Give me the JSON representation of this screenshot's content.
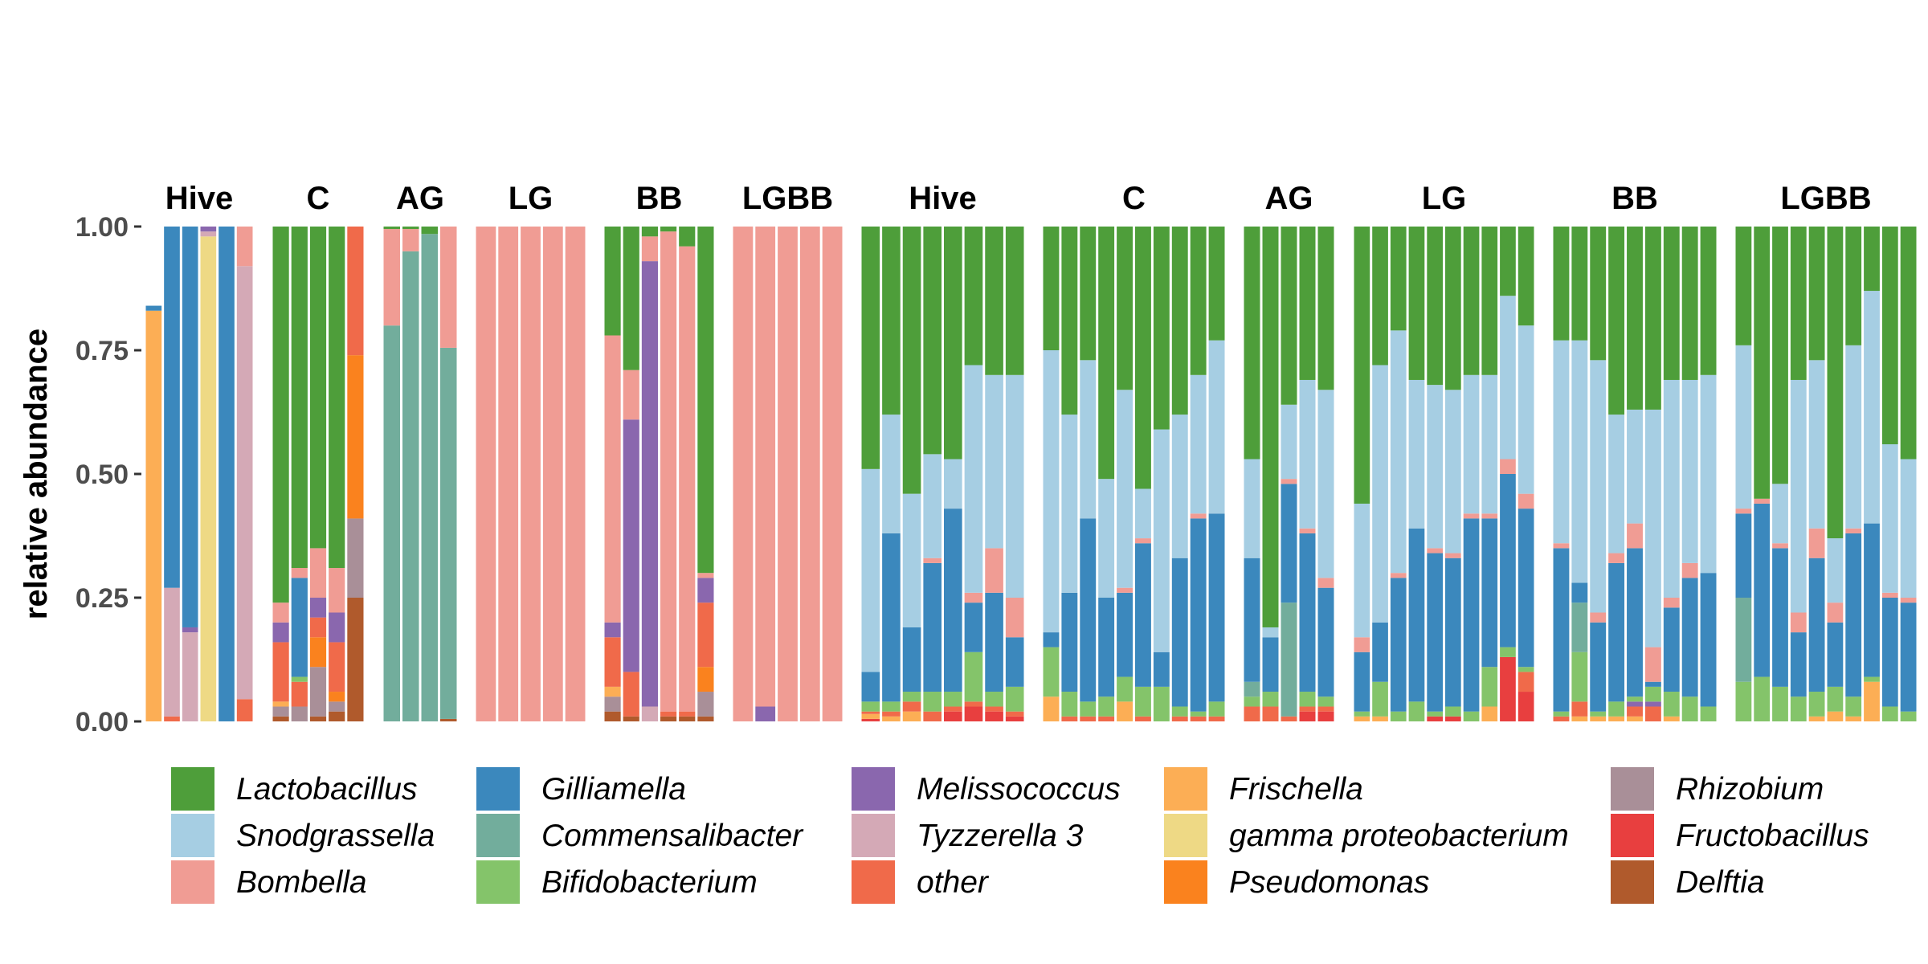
{
  "chart_data": {
    "type": "bar",
    "stacked": true,
    "ylabel": "relative abundance",
    "ylim": [
      0,
      1
    ],
    "yticks": [
      "0.00",
      "0.25",
      "0.50",
      "0.75",
      "1.00"
    ],
    "grid": false,
    "legend_position": "bottom",
    "taxa": [
      {
        "name": "Lactobacillus",
        "color": "#4e9e3a"
      },
      {
        "name": "Snodgrassella",
        "color": "#a6cee3"
      },
      {
        "name": "Bombella",
        "color": "#f09c94"
      },
      {
        "name": "Gilliamella",
        "color": "#3b88bd"
      },
      {
        "name": "Commensalibacter",
        "color": "#72ad9c"
      },
      {
        "name": "Bifidobacterium",
        "color": "#84c46a"
      },
      {
        "name": "Melissococcus",
        "color": "#8a67ae"
      },
      {
        "name": "Tyzzerella 3",
        "color": "#d4a9b6"
      },
      {
        "name": "other",
        "color": "#f06a4a"
      },
      {
        "name": "Frischella",
        "color": "#fcae55"
      },
      {
        "name": "gamma proteobacterium",
        "color": "#eed985"
      },
      {
        "name": "Pseudomonas",
        "color": "#fa821e"
      },
      {
        "name": "Rhizobium",
        "color": "#a98f98"
      },
      {
        "name": "Fructobacillus",
        "color": "#e83f3f"
      },
      {
        "name": "Delftia",
        "color": "#b05a2c"
      }
    ],
    "panels": [
      {
        "label": "Hive",
        "bars": [
          {
            "Frischella": 0.83,
            "Gilliamella": 0.01,
            "Bombella": 0.0
          },
          {
            "Tyzzerella 3": 0.26,
            "Gilliamella": 0.73,
            "other": 0.01
          },
          {
            "Tyzzerella 3": 0.18,
            "Gilliamella": 0.81,
            "Melissococcus": 0.01
          },
          {
            "gamma proteobacterium": 0.98,
            "Melissococcus": 0.01,
            "Tyzzerella 3": 0.01
          },
          {
            "Gilliamella": 1.0
          },
          {
            "other": 0.045,
            "Tyzzerella 3": 0.875,
            "Bombella": 0.08
          }
        ]
      },
      {
        "label": "C",
        "bars": [
          {
            "Delftia": 0.01,
            "Rhizobium": 0.02,
            "Frischella": 0.01,
            "other": 0.12,
            "Melissococcus": 0.04,
            "Bombella": 0.04,
            "Lactobacillus": 0.76
          },
          {
            "Rhizobium": 0.03,
            "other": 0.05,
            "Bifidobacterium": 0.01,
            "Gilliamella": 0.2,
            "Bombella": 0.02,
            "Lactobacillus": 0.69
          },
          {
            "Delftia": 0.01,
            "Rhizobium": 0.1,
            "Pseudomonas": 0.06,
            "other": 0.04,
            "Melissococcus": 0.04,
            "Bombella": 0.1,
            "Lactobacillus": 0.65
          },
          {
            "Delftia": 0.02,
            "Rhizobium": 0.02,
            "Pseudomonas": 0.02,
            "other": 0.1,
            "Melissococcus": 0.06,
            "Bombella": 0.09,
            "Lactobacillus": 0.69
          },
          {
            "Delftia": 0.25,
            "Rhizobium": 0.16,
            "Pseudomonas": 0.33,
            "other": 0.26
          }
        ]
      },
      {
        "label": "AG",
        "bars": [
          {
            "Commensalibacter": 0.8,
            "Bombella": 0.195,
            "Lactobacillus": 0.005
          },
          {
            "Commensalibacter": 0.95,
            "Bombella": 0.045,
            "Lactobacillus": 0.005
          },
          {
            "Commensalibacter": 0.985,
            "Lactobacillus": 0.015
          },
          {
            "Delftia": 0.005,
            "Commensalibacter": 0.75,
            "Bombella": 0.245
          }
        ]
      },
      {
        "label": "LG",
        "bars": [
          {
            "Bombella": 1.0
          },
          {
            "Bombella": 1.0
          },
          {
            "Bombella": 1.0
          },
          {
            "Bombella": 1.0
          },
          {
            "Bombella": 1.0
          }
        ]
      },
      {
        "label": "BB",
        "bars": [
          {
            "Delftia": 0.02,
            "Rhizobium": 0.03,
            "Frischella": 0.02,
            "other": 0.1,
            "Melissococcus": 0.03,
            "Bombella": 0.58,
            "Lactobacillus": 0.22
          },
          {
            "Delftia": 0.01,
            "other": 0.09,
            "Melissococcus": 0.51,
            "Bombella": 0.1,
            "Lactobacillus": 0.29
          },
          {
            "Tyzzerella 3": 0.03,
            "Melissococcus": 0.9,
            "Bombella": 0.05,
            "Lactobacillus": 0.02
          },
          {
            "Delftia": 0.01,
            "other": 0.01,
            "Bombella": 0.97,
            "Lactobacillus": 0.01
          },
          {
            "Delftia": 0.01,
            "other": 0.01,
            "Bombella": 0.94,
            "Lactobacillus": 0.04
          },
          {
            "Delftia": 0.01,
            "Rhizobium": 0.05,
            "Pseudomonas": 0.05,
            "other": 0.13,
            "Melissococcus": 0.05,
            "Bombella": 0.01,
            "Lactobacillus": 0.7
          }
        ]
      },
      {
        "label": "LGBB",
        "bars": [
          {
            "Bombella": 1.0
          },
          {
            "Melissococcus": 0.03,
            "Bombella": 0.97
          },
          {
            "Bombella": 1.0
          },
          {
            "Bombella": 1.0
          },
          {
            "Bombella": 1.0
          }
        ]
      },
      {
        "label": "Hive",
        "bars": [
          {
            "Fructobacillus": 0.005,
            "other": 0.005,
            "Frischella": 0.01,
            "Bifidobacterium": 0.02,
            "Gilliamella": 0.06,
            "Snodgrassella": 0.41,
            "Lactobacillus": 0.49
          },
          {
            "other": 0.01,
            "Frischella": 0.01,
            "Bifidobacterium": 0.02,
            "Gilliamella": 0.34,
            "Snodgrassella": 0.24,
            "Lactobacillus": 0.38
          },
          {
            "other": 0.02,
            "Frischella": 0.02,
            "Bifidobacterium": 0.02,
            "Gilliamella": 0.13,
            "Snodgrassella": 0.27,
            "Lactobacillus": 0.54
          },
          {
            "other": 0.02,
            "Bifidobacterium": 0.04,
            "Gilliamella": 0.26,
            "Bombella": 0.01,
            "Snodgrassella": 0.21,
            "Lactobacillus": 0.46
          },
          {
            "Fructobacillus": 0.02,
            "other": 0.01,
            "Bifidobacterium": 0.03,
            "Gilliamella": 0.37,
            "Snodgrassella": 0.1,
            "Lactobacillus": 0.47
          },
          {
            "Fructobacillus": 0.03,
            "other": 0.01,
            "Bifidobacterium": 0.1,
            "Gilliamella": 0.1,
            "Bombella": 0.02,
            "Snodgrassella": 0.46,
            "Lactobacillus": 0.28
          },
          {
            "Fructobacillus": 0.02,
            "other": 0.01,
            "Bifidobacterium": 0.03,
            "Gilliamella": 0.2,
            "Bombella": 0.09,
            "Snodgrassella": 0.35,
            "Lactobacillus": 0.3
          },
          {
            "Fructobacillus": 0.01,
            "other": 0.01,
            "Bifidobacterium": 0.05,
            "Gilliamella": 0.1,
            "Bombella": 0.08,
            "Snodgrassella": 0.45,
            "Lactobacillus": 0.3
          }
        ]
      },
      {
        "label": "C",
        "bars": [
          {
            "Frischella": 0.05,
            "Bifidobacterium": 0.1,
            "Gilliamella": 0.03,
            "Snodgrassella": 0.57,
            "Lactobacillus": 0.25
          },
          {
            "other": 0.01,
            "Bifidobacterium": 0.05,
            "Gilliamella": 0.2,
            "Snodgrassella": 0.36,
            "Lactobacillus": 0.38
          },
          {
            "other": 0.01,
            "Bifidobacterium": 0.03,
            "Gilliamella": 0.37,
            "Snodgrassella": 0.32,
            "Lactobacillus": 0.27
          },
          {
            "other": 0.01,
            "Bifidobacterium": 0.04,
            "Gilliamella": 0.2,
            "Snodgrassella": 0.24,
            "Lactobacillus": 0.51
          },
          {
            "Frischella": 0.04,
            "Bifidobacterium": 0.05,
            "Gilliamella": 0.17,
            "Bombella": 0.01,
            "Snodgrassella": 0.4,
            "Lactobacillus": 0.33
          },
          {
            "other": 0.01,
            "Bifidobacterium": 0.06,
            "Gilliamella": 0.29,
            "Bombella": 0.01,
            "Snodgrassella": 0.1,
            "Lactobacillus": 0.53
          },
          {
            "Bifidobacterium": 0.07,
            "Gilliamella": 0.07,
            "Snodgrassella": 0.45,
            "Lactobacillus": 0.41
          },
          {
            "other": 0.01,
            "Bifidobacterium": 0.02,
            "Gilliamella": 0.3,
            "Snodgrassella": 0.29,
            "Lactobacillus": 0.38
          },
          {
            "other": 0.01,
            "Bifidobacterium": 0.01,
            "Gilliamella": 0.39,
            "Bombella": 0.01,
            "Snodgrassella": 0.28,
            "Lactobacillus": 0.3
          },
          {
            "other": 0.01,
            "Bifidobacterium": 0.03,
            "Gilliamella": 0.38,
            "Snodgrassella": 0.35,
            "Lactobacillus": 0.23
          }
        ]
      },
      {
        "label": "AG",
        "bars": [
          {
            "other": 0.03,
            "Commensalibacter": 0.03,
            "Bifidobacterium": 0.02,
            "Gilliamella": 0.25,
            "Snodgrassella": 0.2,
            "Lactobacillus": 0.47
          },
          {
            "other": 0.03,
            "Bifidobacterium": 0.03,
            "Gilliamella": 0.11,
            "Snodgrassella": 0.02,
            "Lactobacillus": 0.81
          },
          {
            "other": 0.01,
            "Commensalibacter": 0.23,
            "Gilliamella": 0.24,
            "Bombella": 0.01,
            "Snodgrassella": 0.15,
            "Lactobacillus": 0.36
          },
          {
            "Fructobacillus": 0.02,
            "other": 0.01,
            "Bifidobacterium": 0.03,
            "Gilliamella": 0.32,
            "Bombella": 0.01,
            "Snodgrassella": 0.3,
            "Lactobacillus": 0.31
          },
          {
            "Fructobacillus": 0.02,
            "other": 0.01,
            "Bifidobacterium": 0.02,
            "Gilliamella": 0.22,
            "Bombella": 0.02,
            "Snodgrassella": 0.38,
            "Lactobacillus": 0.33
          }
        ]
      },
      {
        "label": "LG",
        "bars": [
          {
            "Frischella": 0.01,
            "Bifidobacterium": 0.01,
            "Gilliamella": 0.12,
            "Bombella": 0.03,
            "Snodgrassella": 0.27,
            "Lactobacillus": 0.56
          },
          {
            "Frischella": 0.01,
            "Bifidobacterium": 0.07,
            "Gilliamella": 0.12,
            "Snodgrassella": 0.52,
            "Lactobacillus": 0.28
          },
          {
            "Bifidobacterium": 0.02,
            "Gilliamella": 0.27,
            "Bombella": 0.01,
            "Snodgrassella": 0.49,
            "Lactobacillus": 0.21
          },
          {
            "Bifidobacterium": 0.04,
            "Gilliamella": 0.35,
            "Snodgrassella": 0.3,
            "Lactobacillus": 0.31
          },
          {
            "Fructobacillus": 0.01,
            "Bifidobacterium": 0.01,
            "Gilliamella": 0.32,
            "Bombella": 0.01,
            "Snodgrassella": 0.33,
            "Lactobacillus": 0.32
          },
          {
            "Fructobacillus": 0.01,
            "Bifidobacterium": 0.02,
            "Gilliamella": 0.3,
            "Bombella": 0.01,
            "Snodgrassella": 0.33,
            "Lactobacillus": 0.33
          },
          {
            "Bifidobacterium": 0.02,
            "Gilliamella": 0.39,
            "Bombella": 0.01,
            "Snodgrassella": 0.28,
            "Lactobacillus": 0.3
          },
          {
            "Frischella": 0.03,
            "Bifidobacterium": 0.08,
            "Gilliamella": 0.3,
            "Bombella": 0.01,
            "Snodgrassella": 0.28,
            "Lactobacillus": 0.3
          },
          {
            "Fructobacillus": 0.13,
            "Bifidobacterium": 0.02,
            "Gilliamella": 0.35,
            "Bombella": 0.03,
            "Snodgrassella": 0.33,
            "Lactobacillus": 0.14
          },
          {
            "Fructobacillus": 0.06,
            "other": 0.04,
            "Bifidobacterium": 0.01,
            "Gilliamella": 0.32,
            "Bombella": 0.03,
            "Snodgrassella": 0.34,
            "Lactobacillus": 0.2
          }
        ]
      },
      {
        "label": "BB",
        "bars": [
          {
            "other": 0.01,
            "Bifidobacterium": 0.01,
            "Gilliamella": 0.33,
            "Bombella": 0.01,
            "Snodgrassella": 0.41,
            "Lactobacillus": 0.23
          },
          {
            "Frischella": 0.01,
            "Bifidobacterium": 0.1,
            "Commensalibacter": 0.1,
            "other": 0.03,
            "Gilliamella": 0.04,
            "Snodgrassella": 0.49,
            "Lactobacillus": 0.23
          },
          {
            "Frischella": 0.01,
            "Bifidobacterium": 0.01,
            "Gilliamella": 0.18,
            "Bombella": 0.02,
            "Snodgrassella": 0.51,
            "Lactobacillus": 0.27
          },
          {
            "Frischella": 0.01,
            "Bifidobacterium": 0.03,
            "Gilliamella": 0.28,
            "Bombella": 0.02,
            "Snodgrassella": 0.28,
            "Lactobacillus": 0.38
          },
          {
            "Frischella": 0.01,
            "other": 0.02,
            "Bifidobacterium": 0.01,
            "Melissococcus": 0.01,
            "Gilliamella": 0.3,
            "Bombella": 0.05,
            "Snodgrassella": 0.23,
            "Lactobacillus": 0.37
          },
          {
            "other": 0.03,
            "Bifidobacterium": 0.03,
            "Melissococcus": 0.01,
            "Gilliamella": 0.01,
            "Bombella": 0.07,
            "Snodgrassella": 0.48,
            "Lactobacillus": 0.37
          },
          {
            "Frischella": 0.01,
            "Bifidobacterium": 0.05,
            "Gilliamella": 0.17,
            "Bombella": 0.02,
            "Snodgrassella": 0.44,
            "Lactobacillus": 0.31
          },
          {
            "Bifidobacterium": 0.05,
            "Gilliamella": 0.24,
            "Bombella": 0.03,
            "Snodgrassella": 0.37,
            "Lactobacillus": 0.31
          },
          {
            "Bifidobacterium": 0.03,
            "Gilliamella": 0.27,
            "Snodgrassella": 0.4,
            "Lactobacillus": 0.3
          }
        ]
      },
      {
        "label": "LGBB",
        "bars": [
          {
            "Commensalibacter": 0.17,
            "Bifidobacterium": 0.08,
            "Gilliamella": 0.17,
            "Bombella": 0.01,
            "Snodgrassella": 0.33,
            "Lactobacillus": 0.24
          },
          {
            "Bifidobacterium": 0.09,
            "Gilliamella": 0.35,
            "Bombella": 0.01,
            "Lactobacillus": 0.55
          },
          {
            "Bifidobacterium": 0.07,
            "Gilliamella": 0.28,
            "Bombella": 0.01,
            "Snodgrassella": 0.12,
            "Lactobacillus": 0.52
          },
          {
            "Bifidobacterium": 0.05,
            "Gilliamella": 0.13,
            "Bombella": 0.04,
            "Snodgrassella": 0.47,
            "Lactobacillus": 0.31
          },
          {
            "Frischella": 0.01,
            "Bifidobacterium": 0.05,
            "Gilliamella": 0.27,
            "Bombella": 0.06,
            "Snodgrassella": 0.34,
            "Lactobacillus": 0.27
          },
          {
            "Frischella": 0.02,
            "Bifidobacterium": 0.05,
            "Gilliamella": 0.13,
            "Bombella": 0.04,
            "Snodgrassella": 0.13,
            "Lactobacillus": 0.63
          },
          {
            "Frischella": 0.01,
            "Bifidobacterium": 0.04,
            "Gilliamella": 0.33,
            "Bombella": 0.01,
            "Snodgrassella": 0.37,
            "Lactobacillus": 0.24
          },
          {
            "Frischella": 0.08,
            "Bifidobacterium": 0.01,
            "Gilliamella": 0.31,
            "Snodgrassella": 0.47,
            "Lactobacillus": 0.13
          },
          {
            "Bifidobacterium": 0.03,
            "Gilliamella": 0.22,
            "Bombella": 0.01,
            "Snodgrassella": 0.3,
            "Lactobacillus": 0.44
          },
          {
            "Bifidobacterium": 0.02,
            "Gilliamella": 0.22,
            "Bombella": 0.01,
            "Snodgrassella": 0.28,
            "Lactobacillus": 0.47
          }
        ]
      }
    ]
  }
}
